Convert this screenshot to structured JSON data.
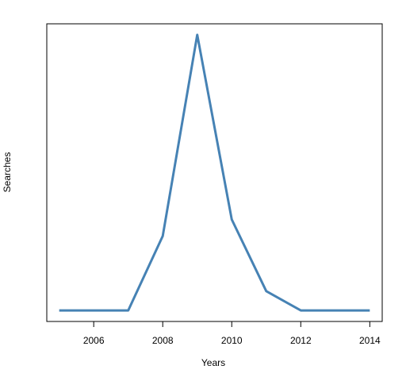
{
  "chart_data": {
    "type": "line",
    "xlabel": "Years",
    "ylabel": "Searches",
    "x": [
      2005,
      2006,
      2007,
      2008,
      2009,
      2010,
      2011,
      2012,
      2013,
      2014
    ],
    "series": [
      {
        "name": "Searches",
        "color": "#4682b4",
        "values": [
          0,
          0,
          0,
          27,
          100,
          33,
          7,
          0,
          0,
          0
        ]
      }
    ],
    "xlim": [
      2004.64,
      2014.36
    ],
    "ylim": [
      -4,
      104
    ],
    "xticks": [
      2006,
      2008,
      2010,
      2012,
      2014
    ]
  }
}
